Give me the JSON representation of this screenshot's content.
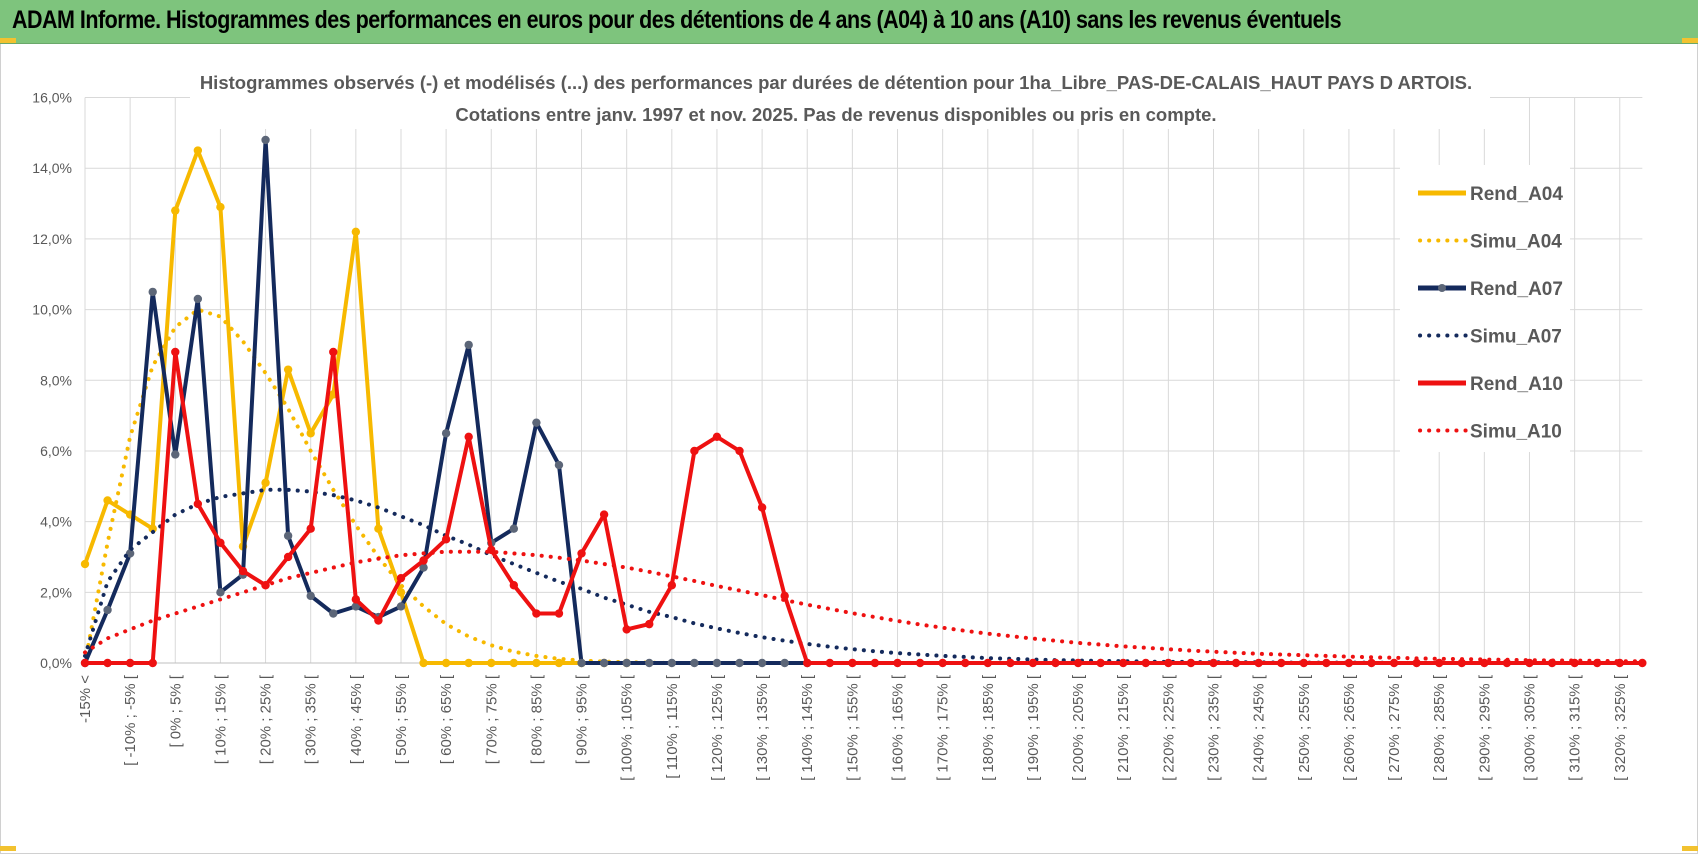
{
  "banner": {
    "title": "ADAM Informe. Histogrammes des performances en euros pour des détentions de 4 ans (A04) à 10 ans (A10) sans les revenus éventuels"
  },
  "colors": {
    "banner_bg": "#7ec47d",
    "a04": "#f7b900",
    "a07": "#142a5c",
    "a10": "#ee1111",
    "grid": "#d9d9d9",
    "axis_text": "#595959"
  },
  "chart_data": {
    "type": "line",
    "title": "Histogrammes observés (-) et modélisés (...) des performances par durées de détention pour 1ha_Libre_PAS-DE-CALAIS_HAUT PAYS D ARTOIS.",
    "subtitle": "Cotations entre janv. 1997 et nov. 2025. Pas de revenus disponibles ou pris en compte.",
    "xlabel": "",
    "ylabel": "",
    "ylim": [
      0,
      16
    ],
    "yticks": [
      "0,0%",
      "2,0%",
      "4,0%",
      "6,0%",
      "8,0%",
      "10,0%",
      "12,0%",
      "14,0%",
      "16,0%"
    ],
    "grid": true,
    "legend_position": "right",
    "categories_count": 70,
    "x_tick_labels": [
      "-15% <",
      "[ -10% ; -5% [",
      "[ 0% ; 5% [",
      "[ 10% ; 15% [",
      "[ 20% ; 25% [",
      "[ 30% ; 35% [",
      "[ 40% ; 45% [",
      "[ 50% ; 55% [",
      "[ 60% ; 65% [",
      "[ 70% ; 75% [",
      "[ 80% ; 85% [",
      "[ 90% ; 95% [",
      "[ 100% ; 105% [",
      "[ 110% ; 115% [",
      "[ 120% ; 125% [",
      "[ 130% ; 135% [",
      "[ 140% ; 145% [",
      "[ 150% ; 155% [",
      "[ 160% ; 165% [",
      "[ 170% ; 175% [",
      "[ 180% ; 185% [",
      "[ 190% ; 195% [",
      "[ 200% ; 205% [",
      "[ 210% ; 215% [",
      "[ 220% ; 225% [",
      "[ 230% ; 235% [",
      "[ 240% ; 245% [",
      "[ 250% ; 255% [",
      "[ 260% ; 265% [",
      "[ 270% ; 275% [",
      "[ 280% ; 285% [",
      "[ 290% ; 295% [",
      "[ 300% ; 305% [",
      "[ 310% ; 315% [",
      "[ 320% ; 325% ["
    ],
    "series": [
      {
        "name": "Rend_A04",
        "style": "solid",
        "color": "#f7b900",
        "values": [
          2.8,
          4.6,
          4.2,
          3.8,
          12.8,
          14.5,
          12.9,
          3.3,
          5.1,
          8.3,
          6.5,
          7.6,
          12.2,
          3.8,
          2.0,
          0,
          0,
          0,
          0,
          0,
          0,
          0,
          0,
          0,
          0
        ]
      },
      {
        "name": "Simu_A04",
        "style": "dotted",
        "color": "#f7b900",
        "values": [
          0,
          3.4,
          6.4,
          8.4,
          9.5,
          10.0,
          9.8,
          9.1,
          8.2,
          7.2,
          6.0,
          4.9,
          3.9,
          3.0,
          2.2,
          1.6,
          1.1,
          0.75,
          0.5,
          0.32,
          0.2,
          0.12,
          0.07,
          0.04,
          0.02,
          0.01,
          0,
          0,
          0,
          0,
          0,
          0,
          0,
          0,
          0,
          0,
          0,
          0,
          0,
          0,
          0,
          0,
          0,
          0,
          0,
          0,
          0,
          0,
          0,
          0,
          0,
          0,
          0,
          0,
          0,
          0,
          0,
          0,
          0,
          0,
          0,
          0,
          0,
          0,
          0,
          0,
          0,
          0,
          0,
          0
        ]
      },
      {
        "name": "Rend_A07",
        "style": "solid",
        "color": "#142a5c",
        "values": [
          0,
          1.5,
          3.1,
          10.5,
          5.9,
          10.3,
          2.0,
          2.5,
          14.8,
          3.6,
          1.9,
          1.4,
          1.6,
          1.3,
          1.6,
          2.7,
          6.5,
          9.0,
          3.4,
          3.8,
          6.8,
          5.6,
          0,
          0,
          0,
          0,
          0,
          0,
          0,
          0,
          0,
          0,
          0
        ]
      },
      {
        "name": "Simu_A07",
        "style": "dotted",
        "color": "#142a5c",
        "values": [
          0.2,
          2.3,
          3.2,
          3.7,
          4.2,
          4.5,
          4.7,
          4.8,
          4.9,
          4.9,
          4.85,
          4.75,
          4.6,
          4.4,
          4.15,
          3.9,
          3.6,
          3.35,
          3.05,
          2.8,
          2.55,
          2.3,
          2.1,
          1.85,
          1.65,
          1.45,
          1.3,
          1.12,
          0.98,
          0.85,
          0.73,
          0.63,
          0.54,
          0.46,
          0.39,
          0.33,
          0.28,
          0.24,
          0.2,
          0.17,
          0.14,
          0.12,
          0.1,
          0.08,
          0.07,
          0.06,
          0.05,
          0.04,
          0.03,
          0.03,
          0.02,
          0.02,
          0.02,
          0.01,
          0.01,
          0.01,
          0.01,
          0.01,
          0,
          0,
          0,
          0,
          0,
          0,
          0,
          0,
          0,
          0,
          0,
          0
        ]
      },
      {
        "name": "Rend_A10",
        "style": "solid",
        "color": "#ee1111",
        "values": [
          0,
          0,
          0,
          0,
          8.8,
          4.5,
          3.4,
          2.6,
          2.2,
          3.0,
          3.8,
          8.8,
          1.8,
          1.2,
          2.4,
          2.9,
          3.5,
          6.4,
          3.2,
          2.2,
          1.4,
          1.4,
          3.1,
          4.2,
          0.95,
          1.1,
          2.2,
          6.0,
          6.4,
          6.0,
          4.4,
          1.9,
          0,
          0,
          0,
          0,
          0,
          0,
          0,
          0,
          0,
          0,
          0,
          0,
          0,
          0,
          0,
          0,
          0,
          0,
          0,
          0,
          0,
          0,
          0,
          0,
          0,
          0,
          0,
          0,
          0,
          0,
          0,
          0,
          0,
          0,
          0,
          0,
          0,
          0
        ]
      },
      {
        "name": "Simu_A10",
        "style": "dotted",
        "color": "#ee1111",
        "values": [
          0.3,
          0.7,
          0.95,
          1.2,
          1.4,
          1.6,
          1.8,
          2.0,
          2.2,
          2.4,
          2.55,
          2.7,
          2.85,
          2.95,
          3.05,
          3.1,
          3.15,
          3.15,
          3.15,
          3.1,
          3.05,
          2.98,
          2.9,
          2.8,
          2.7,
          2.58,
          2.45,
          2.32,
          2.18,
          2.05,
          1.92,
          1.78,
          1.65,
          1.53,
          1.41,
          1.3,
          1.19,
          1.09,
          1.0,
          0.91,
          0.83,
          0.76,
          0.69,
          0.63,
          0.57,
          0.52,
          0.47,
          0.43,
          0.39,
          0.35,
          0.32,
          0.29,
          0.26,
          0.24,
          0.22,
          0.2,
          0.18,
          0.16,
          0.15,
          0.13,
          0.12,
          0.11,
          0.1,
          0.09,
          0.08,
          0.07,
          0.07,
          0.06,
          0.05,
          0.05
        ]
      }
    ]
  }
}
